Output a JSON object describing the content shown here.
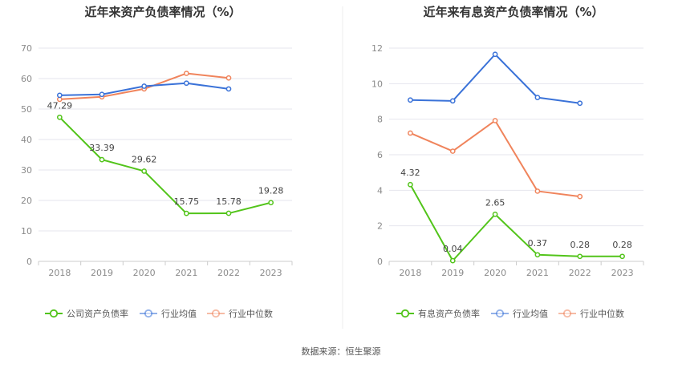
{
  "source": "数据来源：恒生聚源",
  "colors": {
    "company": "#52c41a",
    "industry_avg": "#3a72d8",
    "industry_median": "#f0845c",
    "grid": "#e6e6ee",
    "axis": "#cccccc"
  },
  "chart_data": [
    {
      "type": "line",
      "title": "近年来资产负债率情况（%）",
      "categories": [
        "2018",
        "2019",
        "2020",
        "2021",
        "2022",
        "2023"
      ],
      "ylim": [
        0,
        70
      ],
      "yticks": [
        0,
        10,
        20,
        30,
        40,
        50,
        60,
        70
      ],
      "grid": true,
      "legend_position": "bottom",
      "series": [
        {
          "name": "公司资产负债率",
          "color": "#52c41a",
          "values": [
            47.29,
            33.39,
            29.62,
            15.75,
            15.78,
            19.28
          ],
          "labels": [
            "47.29",
            "33.39",
            "29.62",
            "15.75",
            "15.78",
            "19.28"
          ]
        },
        {
          "name": "行业均值",
          "color": "#3a72d8",
          "values": [
            54.5,
            54.8,
            57.5,
            58.5,
            56.6,
            null
          ]
        },
        {
          "name": "行业中位数",
          "color": "#f0845c",
          "values": [
            53.2,
            54.0,
            56.6,
            61.7,
            60.2,
            null
          ]
        }
      ]
    },
    {
      "type": "line",
      "title": "近年来有息资产负债率情况（%）",
      "categories": [
        "2018",
        "2019",
        "2020",
        "2021",
        "2022",
        "2023"
      ],
      "ylim": [
        0,
        12
      ],
      "yticks": [
        0,
        2,
        4,
        6,
        8,
        10,
        12
      ],
      "grid": true,
      "legend_position": "bottom",
      "series": [
        {
          "name": "有息资产负债率",
          "color": "#52c41a",
          "values": [
            4.32,
            0.04,
            2.65,
            0.37,
            0.28,
            0.28
          ],
          "labels": [
            "4.32",
            "0.04",
            "2.65",
            "0.37",
            "0.28",
            "0.28"
          ]
        },
        {
          "name": "行业均值",
          "color": "#3a72d8",
          "values": [
            9.08,
            9.03,
            11.65,
            9.22,
            8.9,
            null
          ]
        },
        {
          "name": "行业中位数",
          "color": "#f0845c",
          "values": [
            7.22,
            6.2,
            7.92,
            3.95,
            3.65,
            null
          ]
        }
      ]
    }
  ]
}
